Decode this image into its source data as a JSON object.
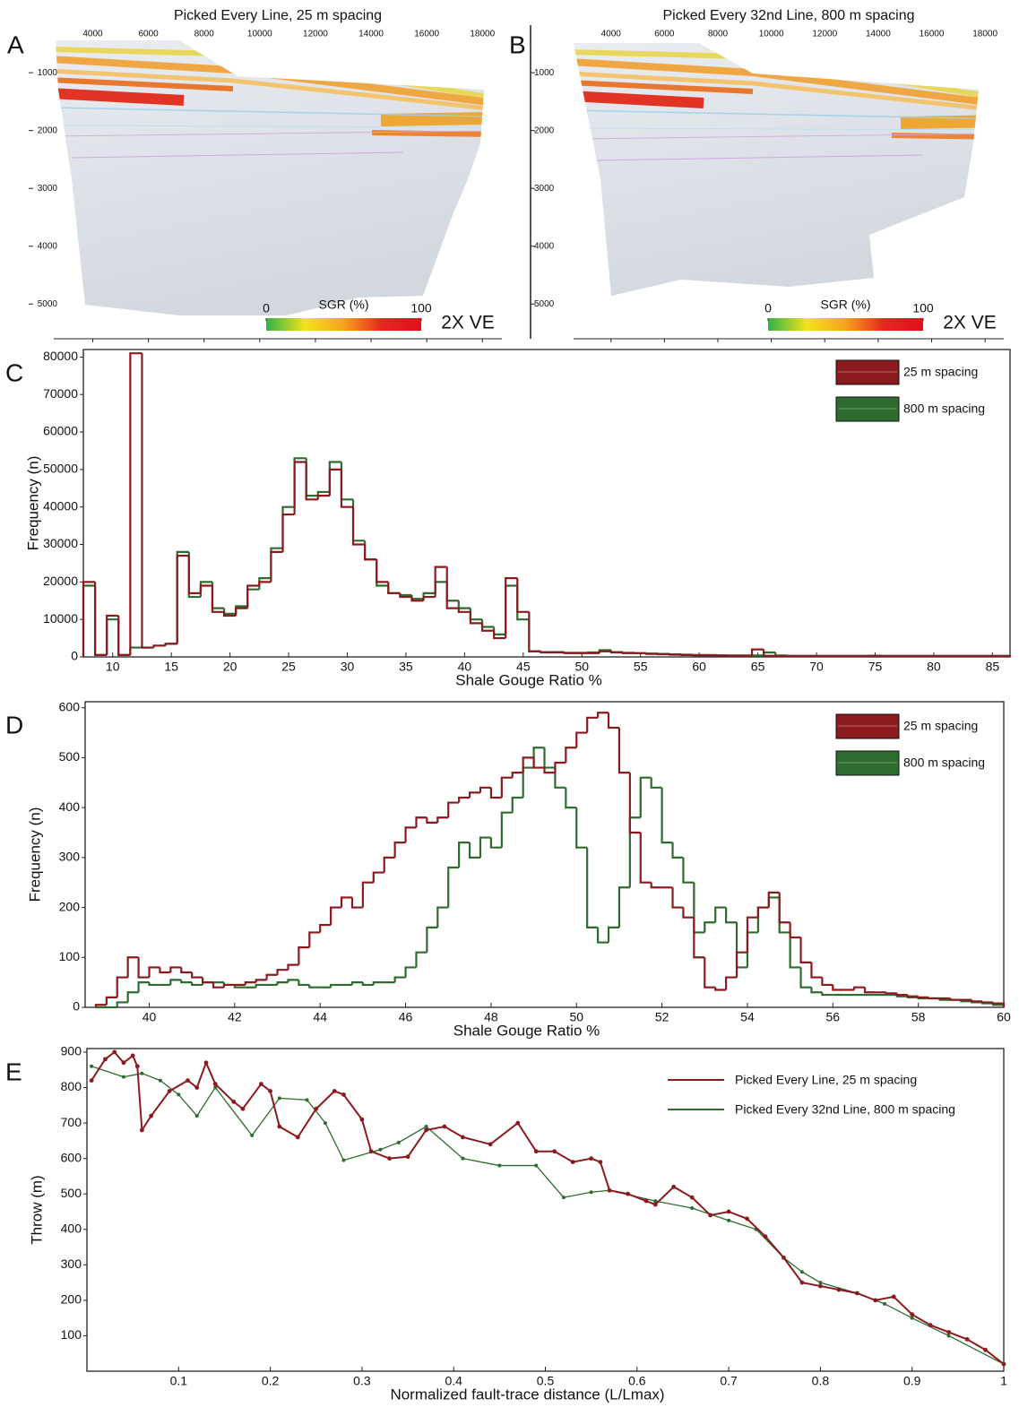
{
  "chart_data": [
    {
      "type": "surface",
      "panel_label": "A",
      "title": "Picked Every Line, 25 m spacing",
      "xlim": [
        2600,
        18700
      ],
      "xticks": [
        4000,
        6000,
        8000,
        10000,
        12000,
        14000,
        16000,
        18000
      ],
      "ylim": [
        5600,
        440
      ],
      "yticks": [
        1000,
        2000,
        3000,
        4000,
        5000
      ],
      "colorbar": {
        "label": "SGR (%)",
        "lim": [
          0,
          100
        ],
        "ticks": [
          0,
          100
        ],
        "colors": [
          "#2fb34a",
          "#f2e21c",
          "#f7a21b",
          "#e8251f",
          "#e0101e"
        ]
      },
      "ve_label": "2X VE"
    },
    {
      "type": "surface",
      "panel_label": "B",
      "title": "Picked Every 32nd Line, 800 m spacing",
      "xlim": [
        2600,
        18700
      ],
      "xticks": [
        4000,
        6000,
        8000,
        10000,
        12000,
        14000,
        16000,
        18000
      ],
      "ylim": [
        5600,
        440
      ],
      "yticks": [
        1000,
        2000,
        3000,
        4000,
        5000
      ],
      "colorbar": {
        "label": "SGR (%)",
        "lim": [
          0,
          100
        ],
        "ticks": [
          0,
          100
        ],
        "colors": [
          "#2fb34a",
          "#f2e21c",
          "#f7a21b",
          "#e8251f",
          "#e0101e"
        ]
      },
      "ve_label": "2X VE"
    },
    {
      "type": "histogram",
      "panel_label": "C",
      "x_label": "Shale Gouge Ratio %",
      "y_label": "Frequency (n)",
      "xlim": [
        7.5,
        86.5
      ],
      "xticks": [
        10,
        15,
        20,
        25,
        30,
        35,
        40,
        45,
        50,
        55,
        60,
        65,
        70,
        75,
        80,
        85
      ],
      "ylim": [
        0,
        82000
      ],
      "yticks": [
        0,
        10000,
        20000,
        30000,
        40000,
        50000,
        60000,
        70000,
        80000
      ],
      "legend": "upper right",
      "bins": [
        7.5,
        8.5,
        9.5,
        10.5,
        11.5,
        12.5,
        13.5,
        14.5,
        15.5,
        16.5,
        17.5,
        18.5,
        19.5,
        20.5,
        21.5,
        22.5,
        23.5,
        24.5,
        25.5,
        26.5,
        27.5,
        28.5,
        29.5,
        30.5,
        31.5,
        32.5,
        33.5,
        34.5,
        35.5,
        36.5,
        37.5,
        38.5,
        39.5,
        40.5,
        41.5,
        42.5,
        43.5,
        44.5,
        45.5,
        46.5,
        47.5,
        48.5,
        49.5,
        50.5,
        51.5,
        52.5,
        53.5,
        54.5,
        55.5,
        56.5,
        57.5,
        58.5,
        59.5,
        60.5,
        61.5,
        62.5,
        63.5,
        64.5,
        65.5,
        66.5,
        67.5,
        68.5,
        69.5,
        70.5,
        71.5,
        72.5,
        73.5,
        74.5,
        75.5,
        76.5,
        77.5,
        78.5,
        79.5,
        80.5,
        81.5,
        82.5,
        83.5,
        84.5,
        85.5,
        86.5
      ],
      "series": [
        {
          "name": "25 m spacing",
          "color": "#8b1a1f",
          "values": [
            20000,
            500,
            11000,
            500,
            81000,
            2500,
            3000,
            3500,
            27000,
            17000,
            19000,
            12000,
            11000,
            13000,
            19000,
            20000,
            28000,
            38000,
            52000,
            42000,
            43000,
            50000,
            40000,
            30000,
            26000,
            20000,
            17000,
            16000,
            15000,
            16000,
            24000,
            13000,
            12000,
            9000,
            7000,
            5000,
            21000,
            12000,
            1500,
            1200,
            1200,
            1000,
            1000,
            1000,
            1500,
            1200,
            1000,
            1000,
            800,
            700,
            600,
            500,
            400,
            400,
            400,
            300,
            300,
            2000,
            300,
            200,
            200,
            200,
            200,
            200,
            200,
            200,
            200,
            300,
            200,
            200,
            200,
            200,
            200,
            200,
            200,
            200,
            200,
            200,
            200
          ]
        },
        {
          "name": "800 m spacing",
          "color": "#2e6b2e",
          "values": [
            19000,
            500,
            10000,
            500,
            2500,
            2500,
            3000,
            3500,
            28000,
            16000,
            20000,
            13000,
            11500,
            13500,
            18000,
            21000,
            29000,
            40000,
            53000,
            43000,
            44000,
            52000,
            42000,
            31000,
            26000,
            19000,
            17000,
            16500,
            15500,
            17000,
            20000,
            15000,
            13000,
            10000,
            8000,
            6000,
            19000,
            10000,
            1500,
            1300,
            1300,
            1100,
            1100,
            1200,
            1800,
            1300,
            1100,
            1000,
            900,
            800,
            700,
            600,
            500,
            500,
            400,
            400,
            400,
            400,
            1200,
            400,
            300,
            300,
            300,
            300,
            300,
            300,
            300,
            300,
            300,
            300,
            300,
            300,
            300,
            300,
            300,
            300,
            300,
            300,
            300
          ]
        }
      ]
    },
    {
      "type": "histogram",
      "panel_label": "D",
      "x_label": "Shale Gouge Ratio %",
      "y_label": "Frequency (n)",
      "xlim": [
        38.5,
        60
      ],
      "xticks": [
        40,
        42,
        44,
        46,
        48,
        50,
        52,
        54,
        56,
        58,
        60
      ],
      "ylim": [
        0,
        612
      ],
      "yticks": [
        0,
        100,
        200,
        300,
        400,
        500,
        600
      ],
      "legend": "upper right",
      "bins": [
        38.75,
        39,
        39.25,
        39.5,
        39.75,
        40,
        40.25,
        40.5,
        40.75,
        41,
        41.25,
        41.5,
        41.75,
        42,
        42.25,
        42.5,
        42.75,
        43,
        43.25,
        43.5,
        43.75,
        44,
        44.25,
        44.5,
        44.75,
        45,
        45.25,
        45.5,
        45.75,
        46,
        46.25,
        46.5,
        46.75,
        47,
        47.25,
        47.5,
        47.75,
        48,
        48.25,
        48.5,
        48.75,
        49,
        49.25,
        49.5,
        49.75,
        50,
        50.25,
        50.5,
        50.75,
        51,
        51.25,
        51.5,
        51.75,
        52,
        52.25,
        52.5,
        52.75,
        53,
        53.25,
        53.5,
        53.75,
        54,
        54.25,
        54.5,
        54.75,
        55,
        55.25,
        55.5,
        55.75,
        56,
        56.25,
        56.5,
        56.75,
        57,
        57.25,
        57.5,
        57.75,
        58,
        58.25,
        58.5,
        58.75,
        59,
        59.25,
        59.5,
        59.75,
        60
      ],
      "series": [
        {
          "name": "25 m spacing",
          "color": "#8b1a1f",
          "values": [
            5,
            20,
            60,
            100,
            60,
            80,
            70,
            80,
            70,
            60,
            50,
            40,
            45,
            45,
            50,
            55,
            65,
            75,
            85,
            120,
            150,
            165,
            200,
            220,
            200,
            250,
            270,
            300,
            330,
            360,
            380,
            370,
            380,
            410,
            420,
            430,
            440,
            420,
            460,
            470,
            500,
            480,
            470,
            490,
            520,
            550,
            580,
            590,
            560,
            470,
            350,
            250,
            240,
            240,
            200,
            180,
            100,
            40,
            35,
            60,
            110,
            180,
            200,
            230,
            170,
            140,
            90,
            60,
            45,
            35,
            35,
            40,
            30,
            30,
            28,
            25,
            22,
            20,
            18,
            18,
            15,
            15,
            12,
            10,
            8
          ]
        },
        {
          "name": "800 m spacing",
          "color": "#2e6b2e",
          "values": [
            0,
            0,
            10,
            30,
            50,
            45,
            45,
            55,
            50,
            45,
            50,
            50,
            45,
            40,
            40,
            45,
            45,
            50,
            55,
            45,
            40,
            40,
            45,
            45,
            50,
            45,
            50,
            50,
            60,
            80,
            110,
            160,
            200,
            280,
            330,
            300,
            340,
            320,
            390,
            420,
            480,
            520,
            480,
            440,
            400,
            320,
            160,
            130,
            160,
            240,
            380,
            460,
            440,
            330,
            300,
            250,
            150,
            170,
            200,
            170,
            80,
            150,
            200,
            220,
            150,
            80,
            40,
            30,
            25,
            25,
            25,
            25,
            25,
            25,
            25,
            22,
            20,
            18,
            18,
            15,
            15,
            12,
            10,
            8,
            5
          ]
        }
      ]
    },
    {
      "type": "line",
      "panel_label": "E",
      "x_label": "Normalized fault-trace distance (L/Lmax)",
      "y_label": "Throw (m)",
      "xlim": [
        0,
        1
      ],
      "xticks": [
        0.1,
        0.2,
        0.3,
        0.4,
        0.5,
        0.6,
        0.7,
        0.8,
        0.9,
        1
      ],
      "ylim": [
        0,
        910
      ],
      "yticks": [
        100,
        200,
        300,
        400,
        500,
        600,
        700,
        800,
        900
      ],
      "legend": "upper right",
      "series": [
        {
          "name": "Picked Every Line, 25 m spacing",
          "color": "#8b1a1f",
          "x": [
            0.005,
            0.02,
            0.03,
            0.04,
            0.05,
            0.055,
            0.06,
            0.07,
            0.09,
            0.11,
            0.12,
            0.13,
            0.14,
            0.16,
            0.17,
            0.19,
            0.2,
            0.21,
            0.23,
            0.25,
            0.27,
            0.28,
            0.3,
            0.31,
            0.33,
            0.35,
            0.37,
            0.39,
            0.41,
            0.44,
            0.47,
            0.49,
            0.51,
            0.53,
            0.55,
            0.56,
            0.57,
            0.59,
            0.61,
            0.62,
            0.64,
            0.66,
            0.68,
            0.7,
            0.72,
            0.74,
            0.76,
            0.78,
            0.8,
            0.82,
            0.84,
            0.86,
            0.88,
            0.9,
            0.92,
            0.94,
            0.96,
            0.98,
            1
          ],
          "values": [
            820,
            880,
            900,
            870,
            890,
            860,
            680,
            720,
            790,
            820,
            800,
            870,
            810,
            760,
            740,
            810,
            790,
            690,
            660,
            740,
            790,
            780,
            710,
            620,
            600,
            605,
            680,
            690,
            660,
            640,
            700,
            620,
            620,
            590,
            600,
            590,
            510,
            500,
            480,
            470,
            520,
            490,
            440,
            450,
            430,
            380,
            320,
            250,
            240,
            230,
            220,
            200,
            210,
            160,
            130,
            110,
            90,
            60,
            20
          ]
        },
        {
          "name": "Picked Every 32nd Line, 800 m spacing",
          "color": "#2e6b2e",
          "x": [
            0.005,
            0.04,
            0.06,
            0.08,
            0.1,
            0.12,
            0.14,
            0.18,
            0.21,
            0.24,
            0.26,
            0.28,
            0.32,
            0.34,
            0.37,
            0.41,
            0.45,
            0.49,
            0.52,
            0.55,
            0.57,
            0.62,
            0.66,
            0.7,
            0.73,
            0.76,
            0.78,
            0.8,
            0.84,
            0.87,
            0.9,
            0.94,
            1
          ],
          "values": [
            860,
            830,
            840,
            820,
            780,
            720,
            800,
            665,
            770,
            765,
            700,
            595,
            625,
            645,
            690,
            600,
            580,
            580,
            490,
            505,
            510,
            480,
            460,
            425,
            400,
            320,
            280,
            250,
            220,
            190,
            150,
            100,
            20
          ]
        }
      ]
    }
  ]
}
